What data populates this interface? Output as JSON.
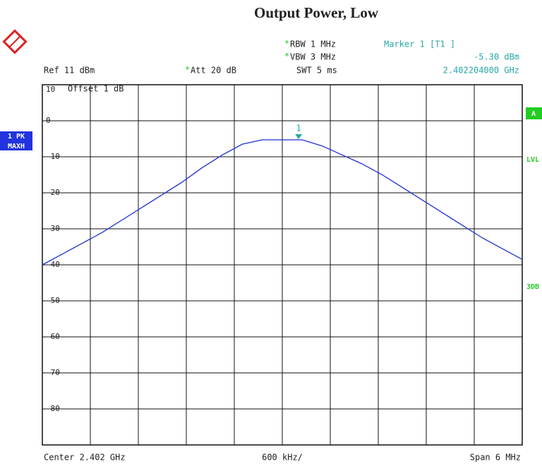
{
  "chart_data": {
    "type": "line",
    "title": "Output Power, Low",
    "header": {
      "rbw": {
        "flag": "*",
        "text": "RBW 1 MHz"
      },
      "vbw": {
        "flag": "*",
        "text": "VBW 3 MHz"
      },
      "swt": "SWT 5 ms",
      "ref": "Ref  11 dBm",
      "att": {
        "flag": "*",
        "text": "Att  20 dB"
      },
      "offset": "Offset  1 dB",
      "marker_title": "Marker 1 [T1 ]",
      "marker_level": "-5.30 dBm",
      "marker_freq": "2.402204000 GHz"
    },
    "side_labels": {
      "trace": "1 PK",
      "mode": "MAXH",
      "a": "A",
      "lvl": "LVL",
      "db3": "3DB"
    },
    "footer": {
      "center": "Center 2.402 GHz",
      "div": "600 kHz/",
      "span": "Span 6 MHz"
    },
    "x": [
      -3,
      -2.75,
      -2.5,
      -2.25,
      -2,
      -1.75,
      -1.5,
      -1.25,
      -1,
      -0.75,
      -0.5,
      -0.25,
      0,
      0.25,
      0.5,
      0.75,
      1,
      1.25,
      1.5,
      1.75,
      2,
      2.25,
      2.5,
      2.75,
      3
    ],
    "series": [
      {
        "name": "1 PK MAXH",
        "color": "#1f2fd0",
        "values": [
          -40,
          -37,
          -34,
          -31,
          -27.5,
          -24,
          -20.5,
          -17,
          -13,
          -9.5,
          -6.5,
          -5.3,
          -5.3,
          -5.3,
          -7,
          -9.5,
          -12,
          -15,
          -18.5,
          -22,
          -25.5,
          -29,
          -32.5,
          -35.5,
          -38.5
        ]
      }
    ],
    "marker": {
      "label": "1",
      "x": 0.204,
      "y": -5.3
    },
    "xlim": [
      -3,
      3
    ],
    "ylim": [
      -90,
      10
    ],
    "yticks": [
      10,
      0,
      -10,
      -20,
      -30,
      -40,
      -50,
      -60,
      -70,
      -80
    ],
    "grid": true
  }
}
